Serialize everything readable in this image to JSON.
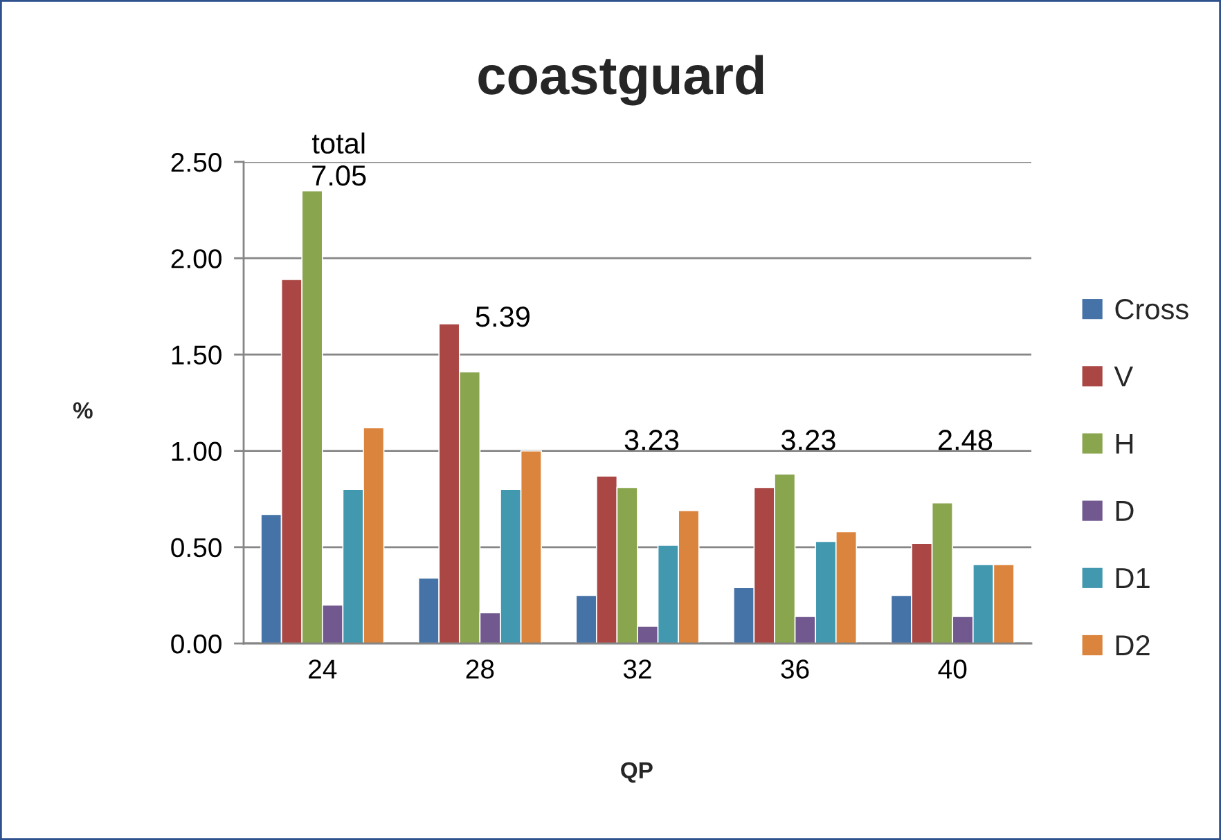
{
  "chart_data": {
    "type": "bar",
    "title": "coastguard",
    "xlabel": "QP",
    "ylabel": "%",
    "categories": [
      "24",
      "28",
      "32",
      "36",
      "40"
    ],
    "series": [
      {
        "name": "Cross",
        "color": "#4572a7",
        "values": [
          0.67,
          0.34,
          0.25,
          0.29,
          0.25
        ]
      },
      {
        "name": "V",
        "color": "#aa4643",
        "values": [
          1.89,
          1.66,
          0.87,
          0.81,
          0.52
        ]
      },
      {
        "name": "H",
        "color": "#89a54e",
        "values": [
          2.35,
          1.41,
          0.81,
          0.88,
          0.73
        ]
      },
      {
        "name": "D",
        "color": "#71588f",
        "values": [
          0.2,
          0.16,
          0.09,
          0.14,
          0.14
        ]
      },
      {
        "name": "D1",
        "color": "#4198af",
        "values": [
          0.8,
          0.8,
          0.51,
          0.53,
          0.41
        ]
      },
      {
        "name": "D2",
        "color": "#db843d",
        "values": [
          1.12,
          1.0,
          0.69,
          0.58,
          0.41
        ]
      }
    ],
    "ylim": [
      0,
      2.5
    ],
    "yticks": [
      {
        "value": 0,
        "label": "0.00"
      },
      {
        "value": 0.5,
        "label": "0.50"
      },
      {
        "value": 1,
        "label": "1.00"
      },
      {
        "value": 1.5,
        "label": "1.50"
      },
      {
        "value": 2,
        "label": "2.00"
      },
      {
        "value": 2.5,
        "label": "2.50"
      }
    ],
    "grid": "y",
    "legend": "right",
    "annotations": [
      "total\n7.05",
      "5.39",
      "3.23",
      "3.23",
      "2.48"
    ]
  }
}
